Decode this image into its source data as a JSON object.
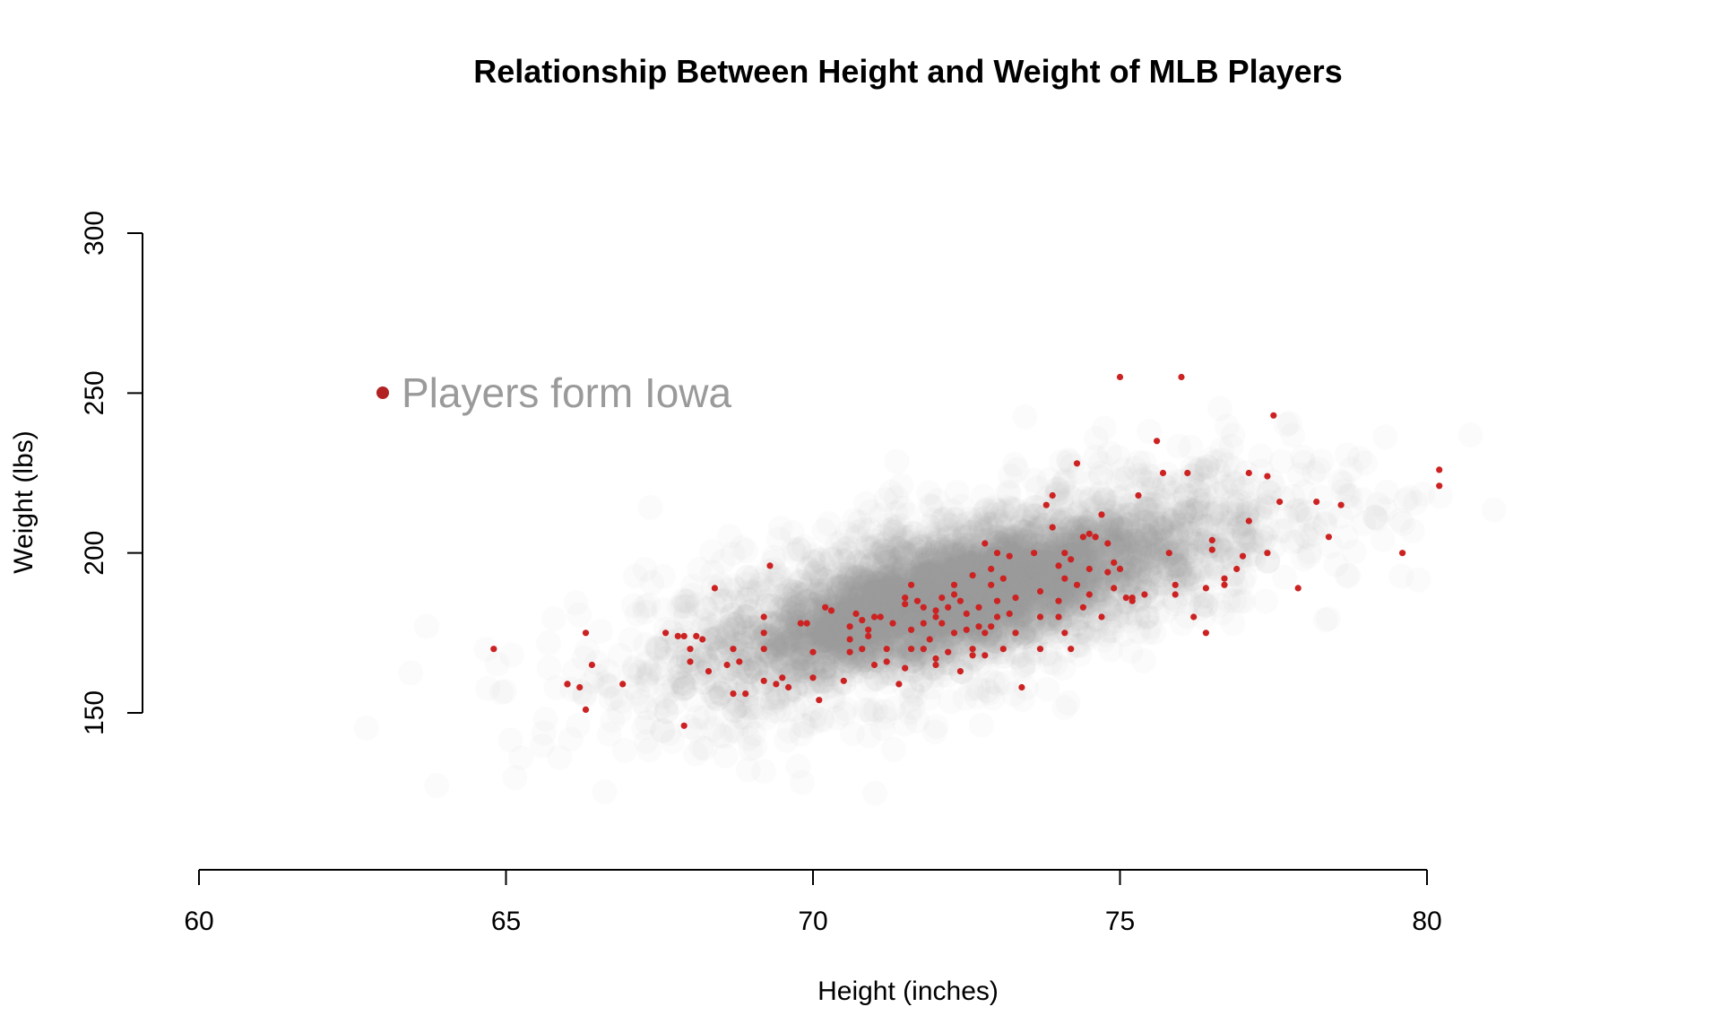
{
  "chart_data": {
    "type": "scatter",
    "title": "Relationship Between Height and Weight of MLB Players",
    "xlabel": "Height (inches)",
    "ylabel": "Weight (lbs)",
    "xlim": [
      60,
      80
    ],
    "ylim": [
      150,
      300
    ],
    "xticks": [
      60,
      65,
      70,
      75,
      80
    ],
    "yticks": [
      150,
      200,
      250,
      300
    ],
    "grid": false,
    "legend": {
      "label": "Players form Iowa",
      "placement": "top-left",
      "color": "#b22222"
    },
    "colors": {
      "background_points": "#9a9a9a",
      "highlight_points": "#cc2222",
      "legend_text": "#9a9a9a"
    },
    "series": [
      {
        "name": "Players form Iowa",
        "points": [
          [
            64.8,
            170
          ],
          [
            66,
            159
          ],
          [
            66,
            159
          ],
          [
            66.2,
            158
          ],
          [
            66.3,
            151
          ],
          [
            66.3,
            175
          ],
          [
            66.4,
            165
          ],
          [
            66.9,
            159
          ],
          [
            67.6,
            175
          ],
          [
            67.8,
            174
          ],
          [
            67.9,
            174
          ],
          [
            67.9,
            146
          ],
          [
            68,
            166
          ],
          [
            68,
            170
          ],
          [
            68.1,
            174
          ],
          [
            68.2,
            173
          ],
          [
            68.3,
            163
          ],
          [
            68.4,
            189
          ],
          [
            68.6,
            165
          ],
          [
            68.7,
            170
          ],
          [
            68.7,
            156
          ],
          [
            68.8,
            166
          ],
          [
            68.9,
            156
          ],
          [
            69.2,
            180
          ],
          [
            69.2,
            175
          ],
          [
            69.2,
            170
          ],
          [
            69.2,
            160
          ],
          [
            69.3,
            196
          ],
          [
            69.4,
            159
          ],
          [
            69.5,
            161
          ],
          [
            69.6,
            158
          ],
          [
            69.8,
            178
          ],
          [
            69.9,
            178
          ],
          [
            70,
            169
          ],
          [
            70,
            161
          ],
          [
            70.1,
            154
          ],
          [
            70.2,
            183
          ],
          [
            70.3,
            182
          ],
          [
            70.5,
            160
          ],
          [
            70.6,
            177
          ],
          [
            70.6,
            173
          ],
          [
            70.6,
            169
          ],
          [
            70.7,
            181
          ],
          [
            70.8,
            170
          ],
          [
            70.8,
            179
          ],
          [
            70.9,
            176
          ],
          [
            70.9,
            174
          ],
          [
            71,
            165
          ],
          [
            71,
            180
          ],
          [
            71.1,
            180
          ],
          [
            71.2,
            170
          ],
          [
            71.2,
            166
          ],
          [
            71.3,
            178
          ],
          [
            71.4,
            159
          ],
          [
            71.5,
            186
          ],
          [
            71.5,
            184
          ],
          [
            71.5,
            164
          ],
          [
            71.6,
            176
          ],
          [
            71.6,
            170
          ],
          [
            71.6,
            190
          ],
          [
            71.7,
            185
          ],
          [
            71.8,
            178
          ],
          [
            71.8,
            170
          ],
          [
            71.8,
            183
          ],
          [
            71.9,
            173
          ],
          [
            72,
            167
          ],
          [
            72,
            180
          ],
          [
            72,
            165
          ],
          [
            72,
            182
          ],
          [
            72.1,
            186
          ],
          [
            72.1,
            178
          ],
          [
            72.2,
            183
          ],
          [
            72.2,
            169
          ],
          [
            72.3,
            190
          ],
          [
            72.3,
            187
          ],
          [
            72.3,
            175
          ],
          [
            72.4,
            163
          ],
          [
            72.4,
            185
          ],
          [
            72.5,
            181
          ],
          [
            72.5,
            176
          ],
          [
            72.6,
            170
          ],
          [
            72.6,
            168
          ],
          [
            72.6,
            193
          ],
          [
            72.7,
            183
          ],
          [
            72.7,
            177
          ],
          [
            72.8,
            203
          ],
          [
            72.8,
            175
          ],
          [
            72.8,
            168
          ],
          [
            72.9,
            190
          ],
          [
            72.9,
            195
          ],
          [
            72.9,
            177
          ],
          [
            73,
            200
          ],
          [
            73,
            180
          ],
          [
            73,
            185
          ],
          [
            73.1,
            192
          ],
          [
            73.1,
            170
          ],
          [
            73.2,
            199
          ],
          [
            73.2,
            181
          ],
          [
            73.3,
            186
          ],
          [
            73.3,
            175
          ],
          [
            73.4,
            158
          ],
          [
            73.6,
            200
          ],
          [
            73.7,
            188
          ],
          [
            73.7,
            180
          ],
          [
            73.7,
            170
          ],
          [
            73.8,
            215
          ],
          [
            73.9,
            218
          ],
          [
            73.9,
            208
          ],
          [
            74,
            196
          ],
          [
            74,
            185
          ],
          [
            74,
            180
          ],
          [
            74.1,
            192
          ],
          [
            74.1,
            175
          ],
          [
            74.1,
            200
          ],
          [
            74.2,
            198
          ],
          [
            74.2,
            170
          ],
          [
            74.3,
            228
          ],
          [
            74.3,
            190
          ],
          [
            74.4,
            205
          ],
          [
            74.4,
            183
          ],
          [
            74.5,
            206
          ],
          [
            74.5,
            195
          ],
          [
            74.5,
            187
          ],
          [
            74.6,
            205
          ],
          [
            74.6,
            205
          ],
          [
            74.7,
            212
          ],
          [
            74.7,
            180
          ],
          [
            74.8,
            203
          ],
          [
            74.8,
            194
          ],
          [
            74.9,
            197
          ],
          [
            74.9,
            189
          ],
          [
            75,
            255
          ],
          [
            75,
            195
          ],
          [
            75.1,
            186
          ],
          [
            75.2,
            185
          ],
          [
            75.2,
            186
          ],
          [
            75.3,
            218
          ],
          [
            75.4,
            187
          ],
          [
            75.6,
            235
          ],
          [
            75.7,
            225
          ],
          [
            75.8,
            200
          ],
          [
            75.9,
            190
          ],
          [
            75.9,
            187
          ],
          [
            76,
            255
          ],
          [
            76.1,
            225
          ],
          [
            76.2,
            180
          ],
          [
            76.4,
            175
          ],
          [
            76.4,
            189
          ],
          [
            76.5,
            204
          ],
          [
            76.5,
            201
          ],
          [
            76.7,
            190
          ],
          [
            76.7,
            192
          ],
          [
            76.9,
            195
          ],
          [
            77,
            199
          ],
          [
            77.1,
            210
          ],
          [
            77.1,
            225
          ],
          [
            77.4,
            224
          ],
          [
            77.4,
            200
          ],
          [
            77.5,
            243
          ],
          [
            77.6,
            216
          ],
          [
            77.9,
            189
          ],
          [
            78.2,
            216
          ],
          [
            78.4,
            205
          ],
          [
            78.6,
            215
          ],
          [
            79.6,
            200
          ],
          [
            80.2,
            226
          ],
          [
            80.2,
            221
          ]
        ]
      }
    ]
  }
}
